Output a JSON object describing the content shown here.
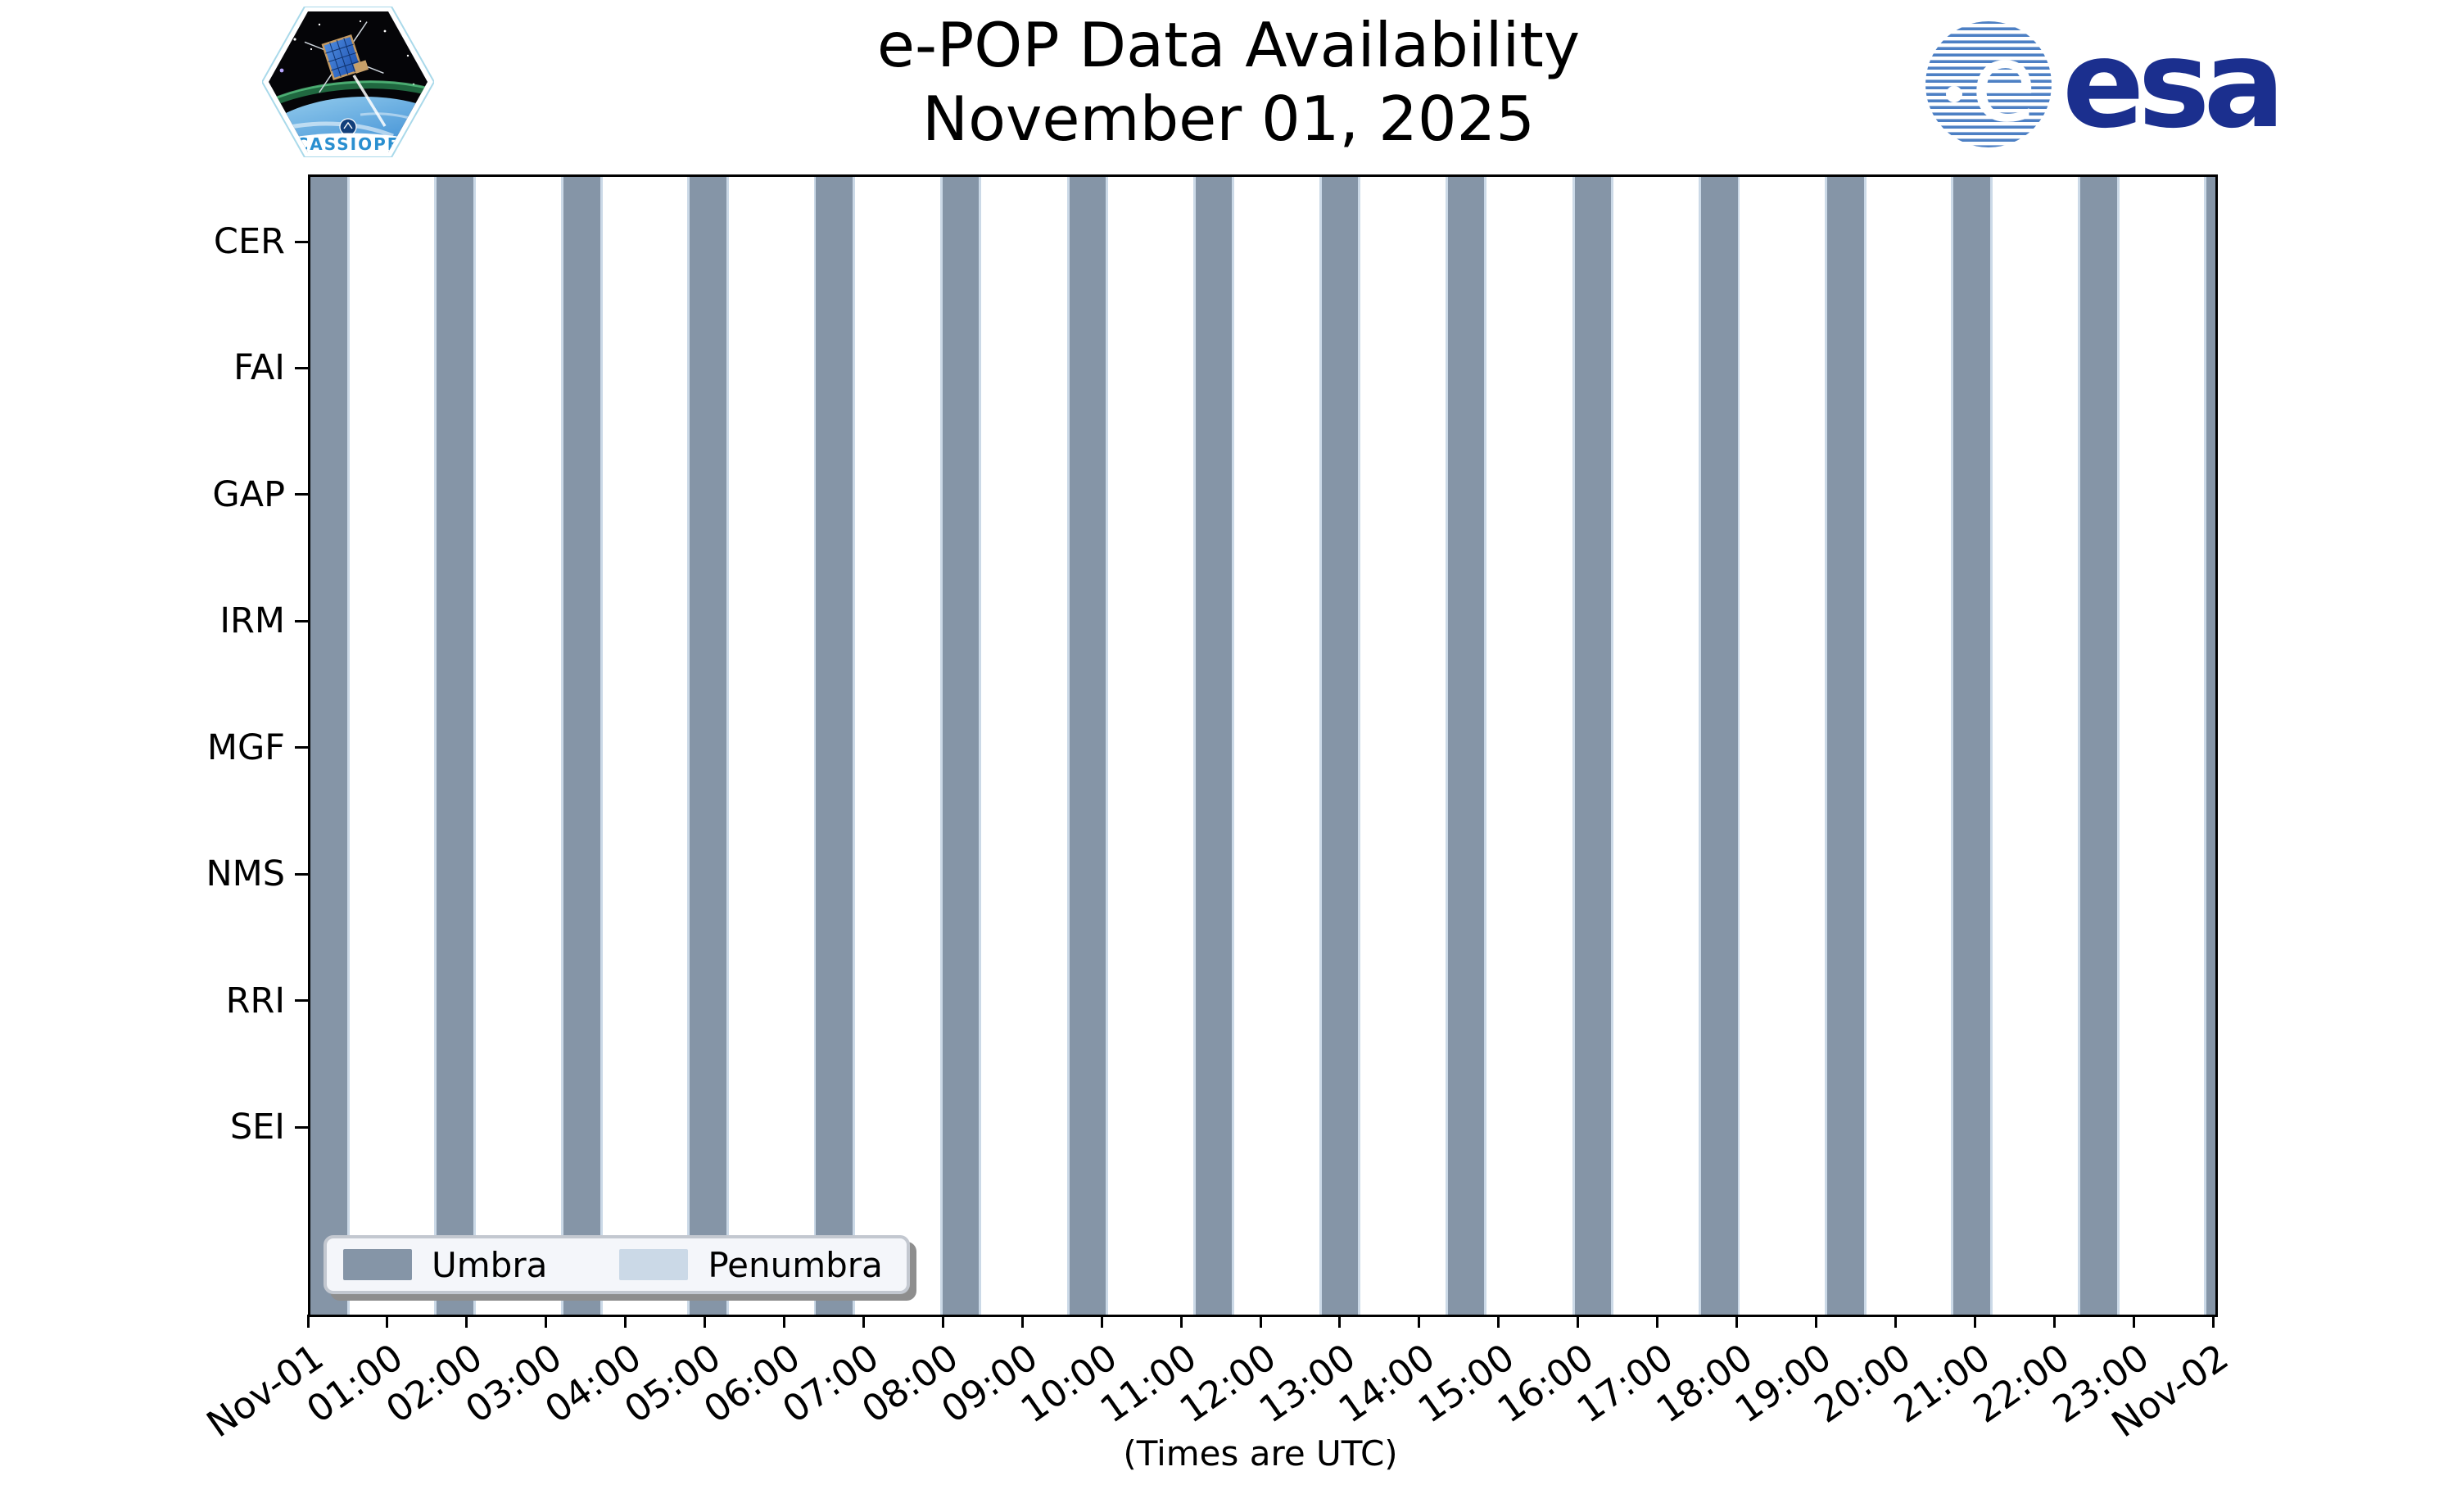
{
  "logos": {
    "cassiope": {
      "name": "CASSIOPE mission patch",
      "label": "CASSIOPE"
    },
    "esa": {
      "name": "European Space Agency logo",
      "wordmark": "esa"
    }
  },
  "chart_data": {
    "type": "bar",
    "subtype": "full-height vertical time-span bars (satellite eclipse availability timeline)",
    "title": "e-POP Data Availability",
    "subtitle": "November 01, 2025",
    "xlabel": "(Times are UTC)",
    "grid": false,
    "x_axis": {
      "range_hours": [
        0,
        24
      ],
      "start_label": "Nov-01",
      "end_label": "Nov-02",
      "tick_labels": [
        "Nov-01",
        "01:00",
        "02:00",
        "03:00",
        "04:00",
        "05:00",
        "06:00",
        "07:00",
        "08:00",
        "09:00",
        "10:00",
        "11:00",
        "12:00",
        "13:00",
        "14:00",
        "15:00",
        "16:00",
        "17:00",
        "18:00",
        "19:00",
        "20:00",
        "21:00",
        "22:00",
        "23:00",
        "Nov-02"
      ],
      "tick_rotation_deg": 35
    },
    "y_axis": {
      "instruments": [
        "CER",
        "FAI",
        "GAP",
        "IRM",
        "MGF",
        "NMS",
        "RRI",
        "SEI"
      ]
    },
    "legend": {
      "position": "lower left",
      "entries": [
        {
          "label": "Umbra",
          "color": "#8595A7"
        },
        {
          "label": "Penumbra",
          "color": "#CBD9E7"
        }
      ]
    },
    "orbital_period_hours": 1.59,
    "umbra_duration_hours": 0.46,
    "penumbra_margin_hours": 0.03,
    "umbra_intervals": [
      {
        "start_hour": 0.0,
        "start_utc": "00:00",
        "end_utc": "00:28"
      },
      {
        "start_hour": 1.59,
        "start_utc": "01:36",
        "end_utc": "02:03"
      },
      {
        "start_hour": 3.19,
        "start_utc": "03:11",
        "end_utc": "03:39"
      },
      {
        "start_hour": 4.78,
        "start_utc": "04:47",
        "end_utc": "05:14"
      },
      {
        "start_hour": 6.37,
        "start_utc": "06:22",
        "end_utc": "06:50"
      },
      {
        "start_hour": 7.96,
        "start_utc": "07:58",
        "end_utc": "08:25"
      },
      {
        "start_hour": 9.56,
        "start_utc": "09:33",
        "end_utc": "10:01"
      },
      {
        "start_hour": 11.15,
        "start_utc": "11:09",
        "end_utc": "11:36"
      },
      {
        "start_hour": 12.74,
        "start_utc": "12:44",
        "end_utc": "13:12"
      },
      {
        "start_hour": 14.33,
        "start_utc": "14:20",
        "end_utc": "14:48"
      },
      {
        "start_hour": 15.93,
        "start_utc": "15:56",
        "end_utc": "16:23"
      },
      {
        "start_hour": 17.52,
        "start_utc": "17:31",
        "end_utc": "17:59"
      },
      {
        "start_hour": 19.11,
        "start_utc": "19:07",
        "end_utc": "19:34"
      },
      {
        "start_hour": 20.7,
        "start_utc": "20:42",
        "end_utc": "21:10"
      },
      {
        "start_hour": 22.3,
        "start_utc": "22:18",
        "end_utc": "22:45"
      },
      {
        "start_hour": 23.89,
        "start_utc": "23:53",
        "end_utc": "24:00 (clipped at plot edge)"
      }
    ]
  }
}
